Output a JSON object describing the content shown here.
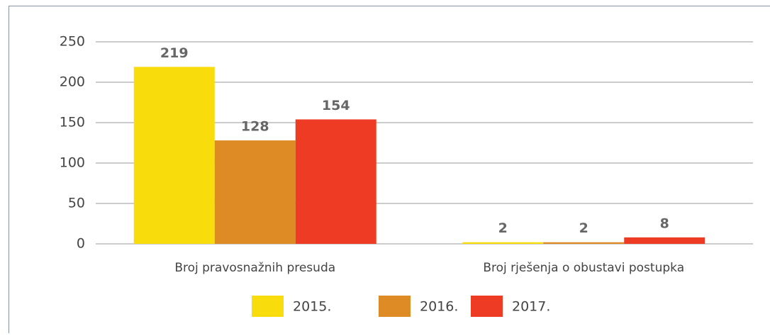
{
  "chart_data": {
    "type": "bar",
    "categories": [
      "Broj pravosnažnih presuda",
      "Broj rješenja o obustavi postupka"
    ],
    "series": [
      {
        "name": "2015.",
        "color": "#f9dc0c",
        "values": [
          219,
          2
        ]
      },
      {
        "name": "2016.",
        "color": "#de8b25",
        "values": [
          128,
          2
        ]
      },
      {
        "name": "2017.",
        "color": "#ee3b24",
        "values": [
          154,
          8
        ]
      }
    ],
    "ylim": [
      0,
      250
    ],
    "yticks": [
      0,
      50,
      100,
      150,
      200,
      250
    ],
    "grid": true,
    "legend": "bottom"
  }
}
